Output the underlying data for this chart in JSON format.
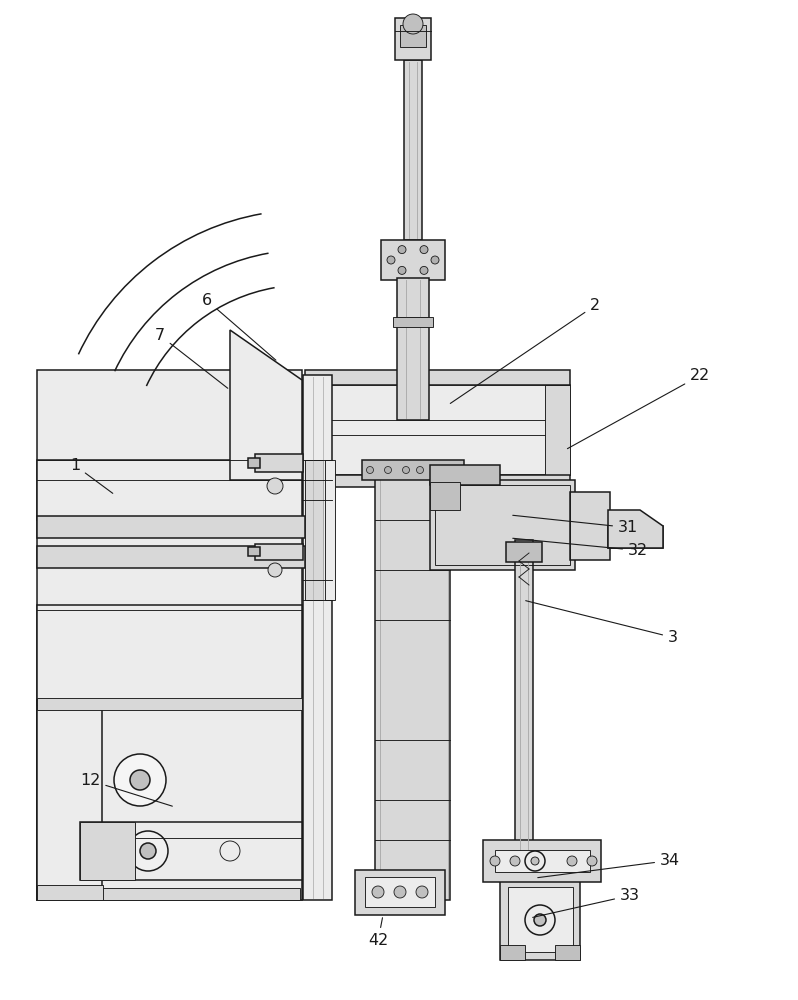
{
  "bg_color": "#ffffff",
  "lc": "#1a1a1a",
  "fc_light": "#ececec",
  "fc_mid": "#d8d8d8",
  "fc_dark": "#c0c0c0",
  "fc_shade": "#b0b0b0",
  "annotations": [
    [
      "2",
      590,
      690,
      448,
      595
    ],
    [
      "6",
      202,
      695,
      278,
      638
    ],
    [
      "7",
      155,
      660,
      230,
      610
    ],
    [
      "1",
      70,
      530,
      115,
      505
    ],
    [
      "22",
      690,
      620,
      565,
      550
    ],
    [
      "12",
      80,
      215,
      175,
      193
    ],
    [
      "31",
      618,
      468,
      510,
      485
    ],
    [
      "32",
      628,
      445,
      510,
      462
    ],
    [
      "3",
      668,
      358,
      523,
      400
    ],
    [
      "33",
      620,
      100,
      530,
      82
    ],
    [
      "34",
      660,
      135,
      535,
      122
    ],
    [
      "42",
      368,
      55,
      383,
      85
    ]
  ]
}
